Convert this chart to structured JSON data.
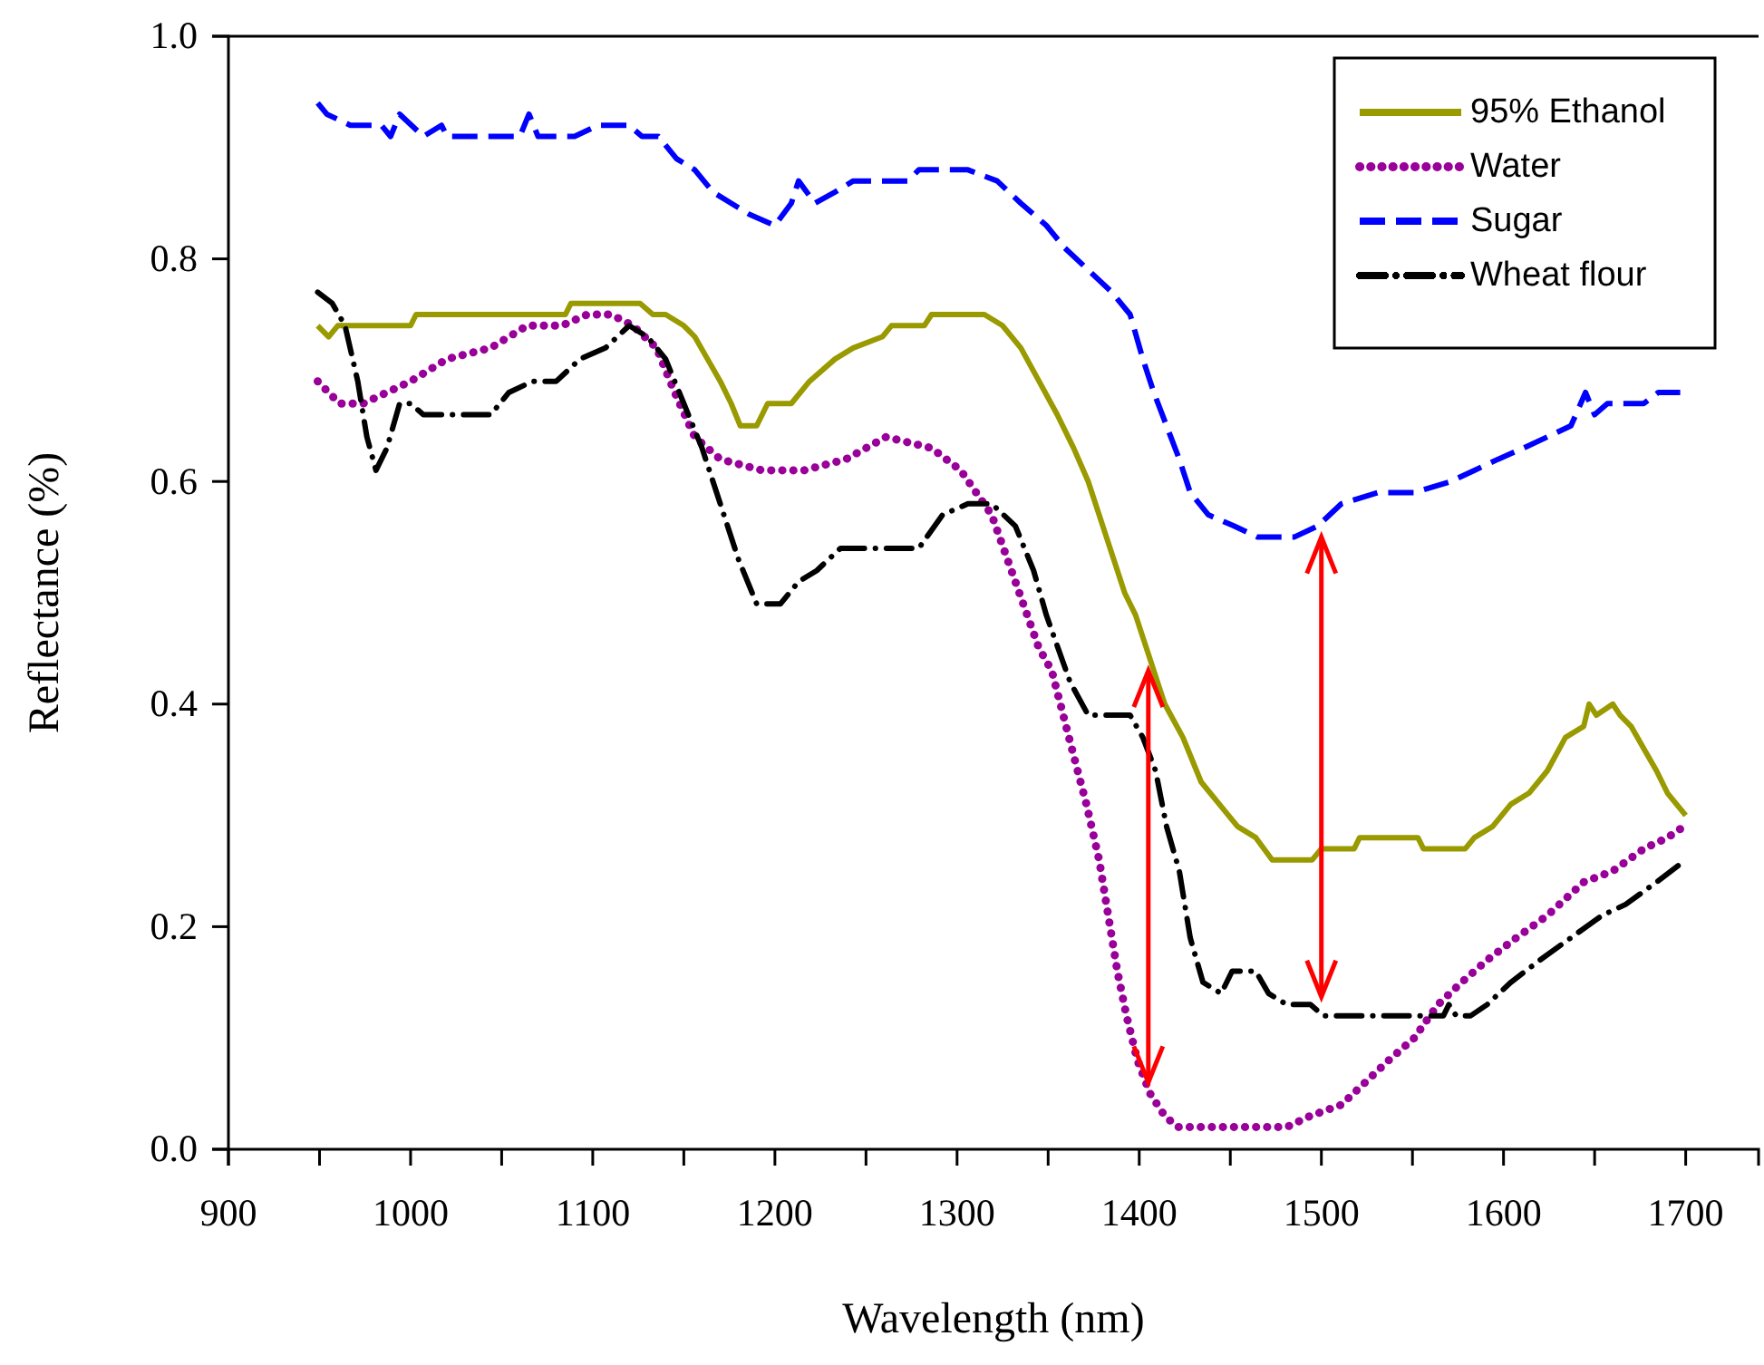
{
  "chart_data": {
    "type": "line",
    "xlabel": "Wavelength (nm)",
    "ylabel": "Reflectance (%)",
    "xlim": [
      900,
      1740
    ],
    "ylim": [
      0,
      1
    ],
    "xticks": [
      900,
      {
        "value": 950,
        "label": null
      },
      1000,
      {
        "value": 1050,
        "label": null
      },
      1100,
      {
        "value": 1150,
        "label": null
      },
      1200,
      {
        "value": 1250,
        "label": null
      },
      1300,
      {
        "value": 1350,
        "label": null
      },
      1400,
      {
        "value": 1450,
        "label": null
      },
      1500,
      {
        "value": 1550,
        "label": null
      },
      1600,
      {
        "value": 1650,
        "label": null
      },
      1700
    ],
    "yticks": [
      {
        "value": 0,
        "label": "0.0"
      },
      0.2,
      0.4,
      0.6,
      0.8,
      {
        "value": 1,
        "label": "1.0"
      }
    ],
    "grid": false,
    "legend": "top right",
    "marker": "none",
    "series": [
      {
        "name": "95% Ethanol",
        "color": "#999900",
        "line_style": "solid",
        "x": [
          949,
          955,
          960,
          1000,
          1003,
          1085,
          1088,
          1126,
          1133,
          1140,
          1150,
          1156,
          1163,
          1170,
          1176,
          1181,
          1190,
          1196,
          1209,
          1219,
          1233,
          1243,
          1259,
          1264,
          1282,
          1286,
          1315,
          1325,
          1335,
          1345,
          1355,
          1364,
          1372,
          1382,
          1392,
          1398,
          1406,
          1414,
          1424,
          1434,
          1444,
          1454,
          1464,
          1473,
          1495,
          1500,
          1518,
          1521,
          1553,
          1556,
          1579,
          1584,
          1594,
          1604,
          1614,
          1624,
          1634,
          1644,
          1647,
          1651,
          1660,
          1664,
          1670,
          1677,
          1684,
          1690,
          1700
        ],
        "values": [
          0.74,
          0.73,
          0.74,
          0.74,
          0.75,
          0.75,
          0.76,
          0.76,
          0.75,
          0.75,
          0.74,
          0.73,
          0.71,
          0.69,
          0.67,
          0.65,
          0.65,
          0.67,
          0.67,
          0.69,
          0.71,
          0.72,
          0.73,
          0.74,
          0.74,
          0.75,
          0.75,
          0.74,
          0.72,
          0.69,
          0.66,
          0.63,
          0.6,
          0.55,
          0.5,
          0.48,
          0.44,
          0.4,
          0.37,
          0.33,
          0.31,
          0.29,
          0.28,
          0.26,
          0.26,
          0.27,
          0.27,
          0.28,
          0.28,
          0.27,
          0.27,
          0.28,
          0.29,
          0.31,
          0.32,
          0.34,
          0.37,
          0.38,
          0.4,
          0.39,
          0.4,
          0.39,
          0.38,
          0.36,
          0.34,
          0.32,
          0.3
        ]
      },
      {
        "name": "Water",
        "color": "#990099",
        "line_style": "dotted",
        "x": [
          949,
          961,
          974,
          987,
          1000,
          1020,
          1044,
          1064,
          1083,
          1097,
          1110,
          1122,
          1135,
          1145,
          1156,
          1170,
          1193,
          1216,
          1239,
          1261,
          1286,
          1302,
          1319,
          1332,
          1345,
          1352,
          1363,
          1371,
          1378,
          1383,
          1388,
          1393,
          1399,
          1406,
          1414,
          1421,
          1481,
          1494,
          1511,
          1524,
          1537,
          1551,
          1564,
          1577,
          1591,
          1607,
          1624,
          1644,
          1660,
          1677,
          1690,
          1699
        ],
        "values": [
          0.69,
          0.67,
          0.67,
          0.68,
          0.69,
          0.71,
          0.72,
          0.74,
          0.74,
          0.75,
          0.75,
          0.74,
          0.72,
          0.68,
          0.64,
          0.62,
          0.61,
          0.61,
          0.62,
          0.64,
          0.63,
          0.61,
          0.57,
          0.51,
          0.45,
          0.43,
          0.36,
          0.31,
          0.26,
          0.21,
          0.16,
          0.12,
          0.08,
          0.05,
          0.03,
          0.02,
          0.02,
          0.03,
          0.04,
          0.06,
          0.08,
          0.1,
          0.13,
          0.15,
          0.17,
          0.19,
          0.21,
          0.24,
          0.25,
          0.27,
          0.28,
          0.29
        ]
      },
      {
        "name": "Sugar",
        "color": "#0000ff",
        "line_style": "dashed",
        "x": [
          949,
          954,
          967,
          984,
          989,
          994,
          1007,
          1017,
          1020,
          1033,
          1060,
          1065,
          1070,
          1090,
          1103,
          1120,
          1127,
          1136,
          1146,
          1156,
          1166,
          1176,
          1186,
          1200,
          1209,
          1213,
          1222,
          1233,
          1243,
          1273,
          1279,
          1299,
          1306,
          1322,
          1335,
          1349,
          1359,
          1372,
          1385,
          1395,
          1402,
          1408,
          1415,
          1422,
          1428,
          1438,
          1452,
          1465,
          1485,
          1498,
          1511,
          1531,
          1551,
          1571,
          1584,
          1597,
          1611,
          1624,
          1637,
          1645,
          1650,
          1657,
          1677,
          1685,
          1697
        ],
        "values": [
          0.94,
          0.93,
          0.92,
          0.92,
          0.91,
          0.93,
          0.91,
          0.92,
          0.91,
          0.91,
          0.91,
          0.93,
          0.91,
          0.91,
          0.92,
          0.92,
          0.91,
          0.91,
          0.89,
          0.88,
          0.86,
          0.85,
          0.84,
          0.83,
          0.85,
          0.87,
          0.85,
          0.86,
          0.87,
          0.87,
          0.88,
          0.88,
          0.88,
          0.87,
          0.85,
          0.83,
          0.81,
          0.79,
          0.77,
          0.75,
          0.71,
          0.68,
          0.65,
          0.62,
          0.59,
          0.57,
          0.56,
          0.55,
          0.55,
          0.56,
          0.58,
          0.59,
          0.59,
          0.6,
          0.61,
          0.62,
          0.63,
          0.64,
          0.65,
          0.68,
          0.66,
          0.67,
          0.67,
          0.68,
          0.68
        ]
      },
      {
        "name": "Wheat flour",
        "color": "#000000",
        "line_style": "dashdot",
        "x": [
          949,
          957,
          964,
          971,
          976,
          981,
          987,
          994,
          1000,
          1007,
          1044,
          1054,
          1067,
          1080,
          1093,
          1107,
          1120,
          1130,
          1140,
          1150,
          1160,
          1170,
          1180,
          1190,
          1203,
          1213,
          1223,
          1236,
          1279,
          1292,
          1306,
          1319,
          1332,
          1342,
          1349,
          1362,
          1372,
          1395,
          1402,
          1409,
          1415,
          1422,
          1428,
          1435,
          1445,
          1451,
          1464,
          1471,
          1481,
          1494,
          1501,
          1567,
          1570,
          1574,
          1582,
          1591,
          1604,
          1620,
          1637,
          1654,
          1667,
          1684,
          1700
        ],
        "values": [
          0.77,
          0.76,
          0.74,
          0.69,
          0.64,
          0.61,
          0.63,
          0.67,
          0.67,
          0.66,
          0.66,
          0.68,
          0.69,
          0.69,
          0.71,
          0.72,
          0.74,
          0.73,
          0.71,
          0.67,
          0.63,
          0.58,
          0.53,
          0.49,
          0.49,
          0.51,
          0.52,
          0.54,
          0.54,
          0.57,
          0.58,
          0.58,
          0.56,
          0.52,
          0.48,
          0.42,
          0.39,
          0.39,
          0.37,
          0.34,
          0.29,
          0.25,
          0.19,
          0.15,
          0.14,
          0.16,
          0.16,
          0.14,
          0.13,
          0.13,
          0.12,
          0.12,
          0.13,
          0.12,
          0.12,
          0.13,
          0.15,
          0.17,
          0.19,
          0.21,
          0.22,
          0.24,
          0.26
        ]
      }
    ]
  }
}
